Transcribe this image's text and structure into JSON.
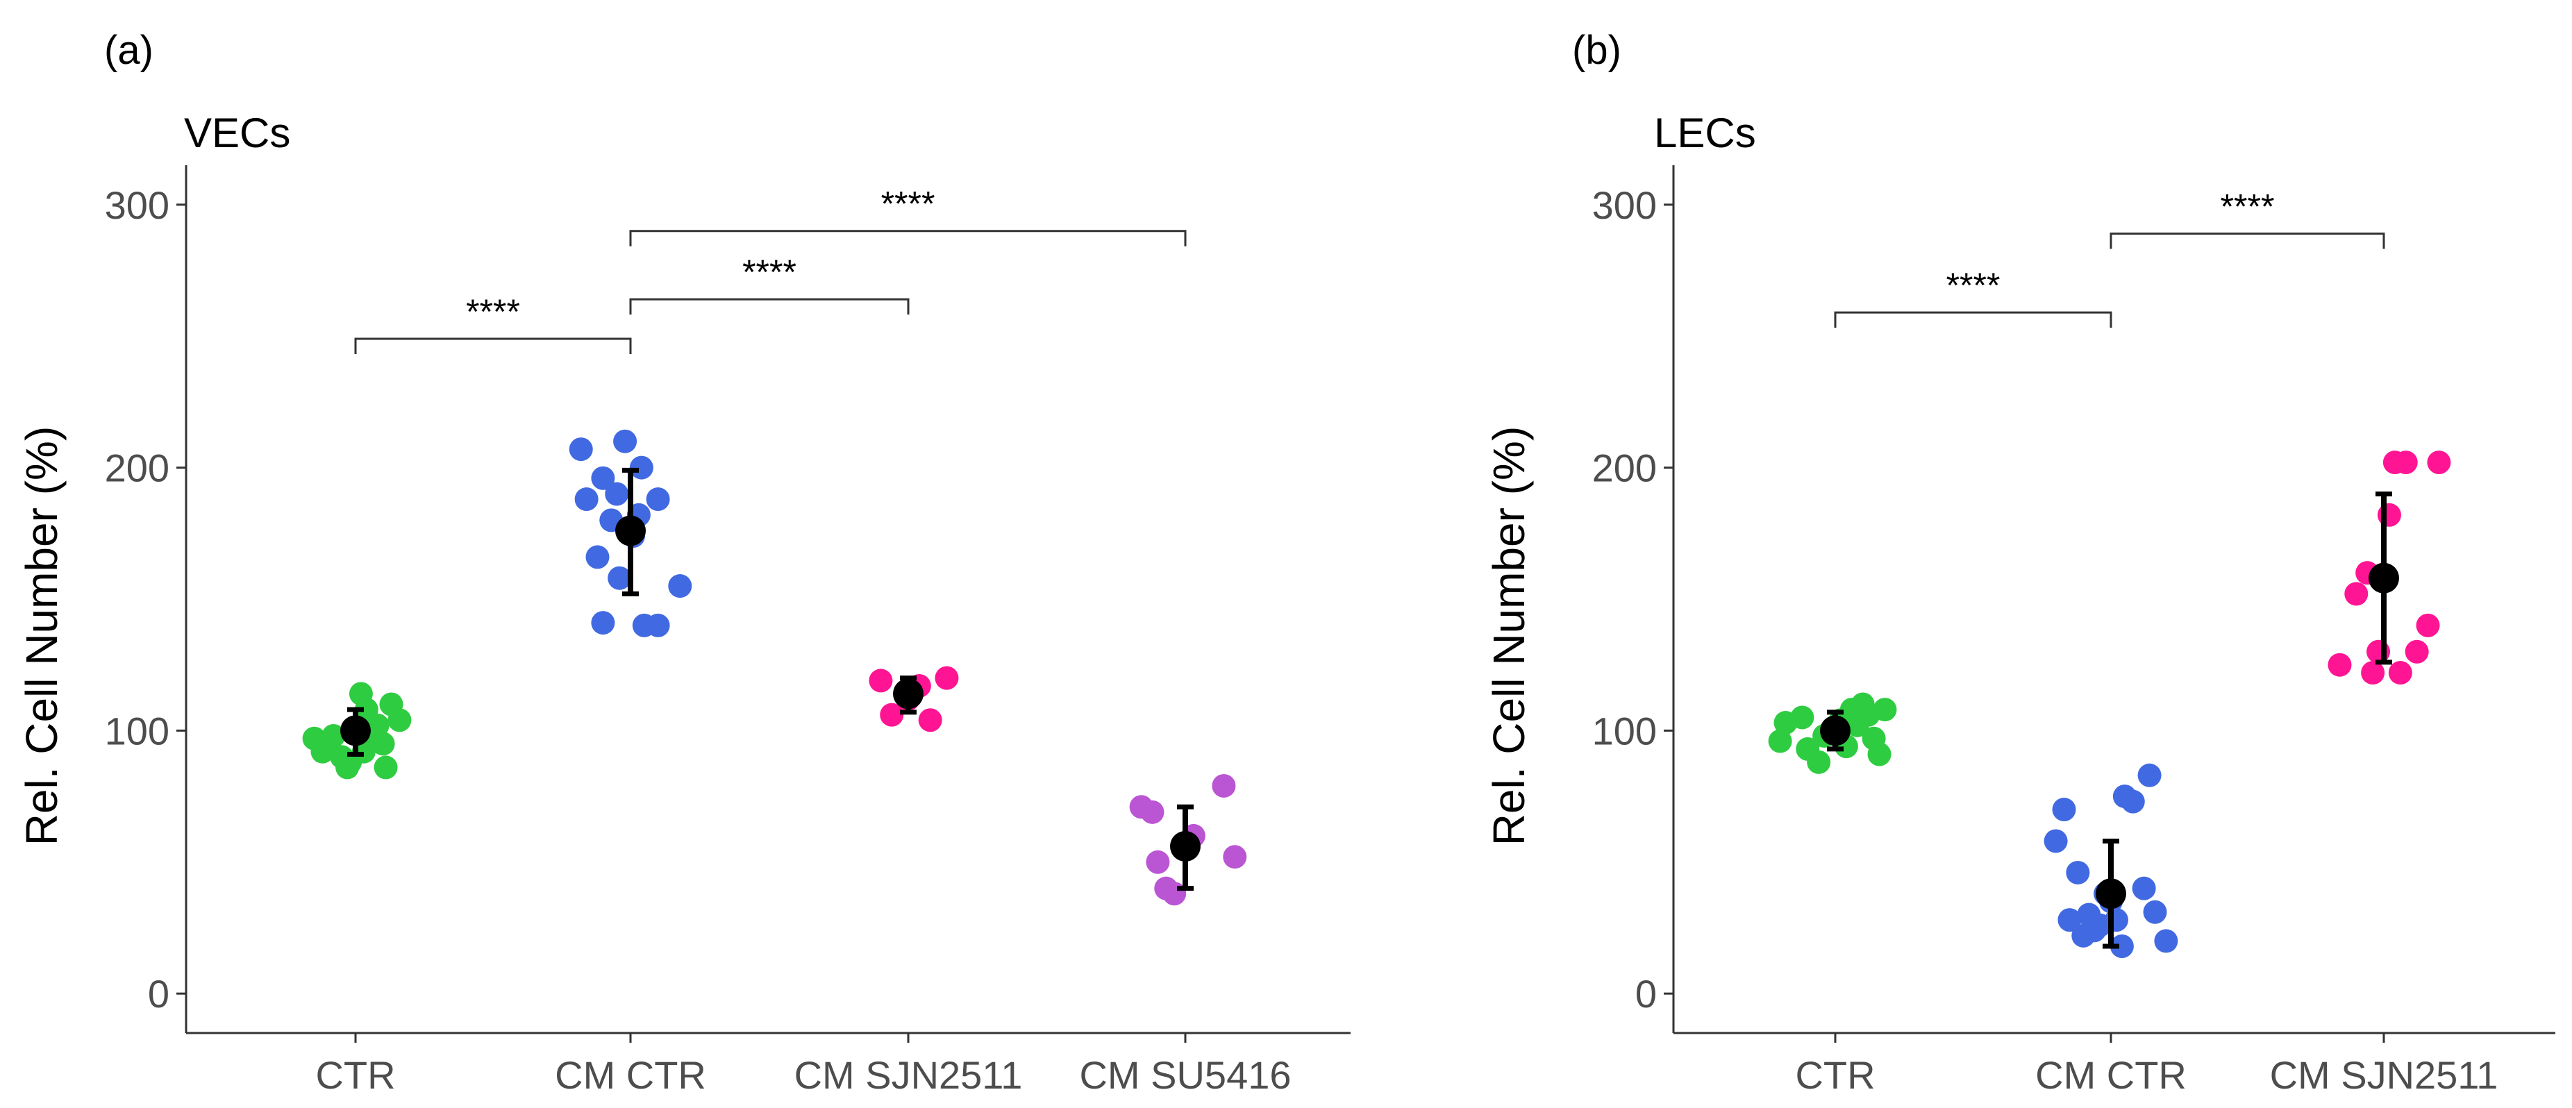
{
  "panel_labels": [
    "(a)",
    "(b)"
  ],
  "y_axis_label": "Rel. Cell Number (%)",
  "colors": {
    "CTR": "#2ecc40",
    "CM CTR": "#4169e1",
    "CM SJN2511": "#ff1493",
    "CM SU5416": "#ba55d3",
    "summary": "#000000",
    "axis": "#333333"
  },
  "chart_data": [
    {
      "type": "scatter",
      "panel": "(a)",
      "title": "VECs",
      "ylabel": "Rel. Cell Number (%)",
      "xlabel": "",
      "ylim": [
        -15,
        315
      ],
      "yticks": [
        "0",
        "100",
        "200",
        "300"
      ],
      "categories": [
        "CTR",
        "CM CTR",
        "CM SJN2511",
        "CM SU5416"
      ],
      "series": [
        {
          "name": "CTR",
          "points": [
            [
              -0.15,
              97
            ],
            [
              -0.12,
              92
            ],
            [
              -0.08,
              98
            ],
            [
              -0.05,
              90
            ],
            [
              -0.02,
              88
            ],
            [
              0.02,
              114
            ],
            [
              0.04,
              108
            ],
            [
              0.06,
              96
            ],
            [
              0.08,
              102
            ],
            [
              0.1,
              95
            ],
            [
              0.13,
              110
            ],
            [
              0.16,
              104
            ],
            [
              0.03,
              92
            ],
            [
              -0.03,
              86
            ],
            [
              0.11,
              86
            ],
            [
              -0.1,
              96
            ]
          ]
        },
        {
          "name": "CM CTR",
          "points": [
            [
              -0.18,
              207
            ],
            [
              -0.1,
              196
            ],
            [
              -0.16,
              188
            ],
            [
              -0.02,
              210
            ],
            [
              0.04,
              200
            ],
            [
              -0.07,
              180
            ],
            [
              0.01,
              174
            ],
            [
              0.1,
              188
            ],
            [
              -0.12,
              166
            ],
            [
              -0.04,
              158
            ],
            [
              0.18,
              155
            ],
            [
              -0.1,
              141
            ],
            [
              0.05,
              140
            ],
            [
              0.1,
              140
            ],
            [
              -0.05,
              190
            ],
            [
              0.03,
              182
            ]
          ]
        },
        {
          "name": "CM SJN2511",
          "points": [
            [
              -0.1,
              119
            ],
            [
              -0.06,
              106
            ],
            [
              0.0,
              112
            ],
            [
              0.04,
              117
            ],
            [
              0.08,
              104
            ],
            [
              0.14,
              120
            ]
          ]
        },
        {
          "name": "CM SU5416",
          "points": [
            [
              -0.16,
              71
            ],
            [
              -0.12,
              69
            ],
            [
              -0.1,
              50
            ],
            [
              -0.07,
              40
            ],
            [
              -0.04,
              38
            ],
            [
              0.03,
              60
            ],
            [
              0.14,
              79
            ],
            [
              0.18,
              52
            ]
          ]
        }
      ],
      "summary": [
        {
          "category": "CTR",
          "mean": 100,
          "low": 91,
          "high": 108
        },
        {
          "category": "CM CTR",
          "mean": 176,
          "low": 152,
          "high": 199
        },
        {
          "category": "CM SJN2511",
          "mean": 114,
          "low": 107,
          "high": 120
        },
        {
          "category": "CM SU5416",
          "mean": 56,
          "low": 40,
          "high": 71
        }
      ],
      "annotations": [
        {
          "from": "CTR",
          "to": "CM CTR",
          "y": 249,
          "label": "****"
        },
        {
          "from": "CM CTR",
          "to": "CM SJN2511",
          "y": 264,
          "label": "****"
        },
        {
          "from": "CM CTR",
          "to": "CM SU5416",
          "y": 290,
          "label": "****"
        }
      ]
    },
    {
      "type": "scatter",
      "panel": "(b)",
      "title": "LECs",
      "ylabel": "Rel. Cell Number (%)",
      "xlabel": "",
      "ylim": [
        -15,
        315
      ],
      "yticks": [
        "0",
        "100",
        "200",
        "300"
      ],
      "categories": [
        "CTR",
        "CM CTR",
        "CM SJN2511"
      ],
      "series": [
        {
          "name": "CTR",
          "points": [
            [
              -0.2,
              96
            ],
            [
              -0.18,
              103
            ],
            [
              -0.12,
              105
            ],
            [
              -0.06,
              88
            ],
            [
              -0.04,
              98
            ],
            [
              0.0,
              100
            ],
            [
              0.04,
              94
            ],
            [
              0.06,
              108
            ],
            [
              0.08,
              102
            ],
            [
              0.1,
              110
            ],
            [
              0.12,
              106
            ],
            [
              0.14,
              97
            ],
            [
              0.16,
              91
            ],
            [
              0.18,
              108
            ],
            [
              -0.1,
              93
            ],
            [
              0.02,
              104
            ]
          ]
        },
        {
          "name": "CM CTR",
          "points": [
            [
              -0.17,
              70
            ],
            [
              -0.2,
              58
            ],
            [
              -0.12,
              46
            ],
            [
              -0.08,
              30
            ],
            [
              -0.04,
              26
            ],
            [
              0.0,
              35
            ],
            [
              0.05,
              75
            ],
            [
              0.08,
              73
            ],
            [
              0.12,
              40
            ],
            [
              0.16,
              31
            ],
            [
              0.2,
              20
            ],
            [
              -0.15,
              28
            ],
            [
              -0.1,
              22
            ],
            [
              -0.02,
              38
            ],
            [
              0.04,
              18
            ],
            [
              0.14,
              83
            ],
            [
              -0.06,
              24
            ],
            [
              0.02,
              28
            ]
          ]
        },
        {
          "name": "CM SJN2511",
          "points": [
            [
              -0.16,
              125
            ],
            [
              -0.1,
              152
            ],
            [
              -0.06,
              160
            ],
            [
              -0.04,
              122
            ],
            [
              0.02,
              182
            ],
            [
              0.04,
              202
            ],
            [
              0.08,
              202
            ],
            [
              0.12,
              130
            ],
            [
              0.16,
              140
            ],
            [
              0.2,
              202
            ],
            [
              -0.02,
              130
            ],
            [
              0.06,
              122
            ]
          ]
        }
      ],
      "summary": [
        {
          "category": "CTR",
          "mean": 100,
          "low": 93,
          "high": 107
        },
        {
          "category": "CM CTR",
          "mean": 38,
          "low": 18,
          "high": 58
        },
        {
          "category": "CM SJN2511",
          "mean": 158,
          "low": 126,
          "high": 190
        }
      ],
      "annotations": [
        {
          "from": "CTR",
          "to": "CM CTR",
          "y": 259,
          "label": "****"
        },
        {
          "from": "CM CTR",
          "to": "CM SJN2511",
          "y": 289,
          "label": "****"
        }
      ]
    }
  ]
}
